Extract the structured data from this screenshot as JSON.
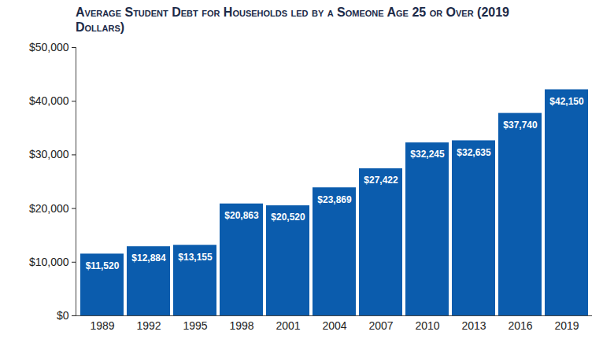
{
  "chart_data": {
    "type": "bar",
    "title": "Average Student Debt for Households led by a Someone Age 25 or Over (2019 Dollars)",
    "categories": [
      "1989",
      "1992",
      "1995",
      "1998",
      "2001",
      "2004",
      "2007",
      "2010",
      "2013",
      "2016",
      "2019"
    ],
    "values": [
      11520,
      12884,
      13155,
      20863,
      20520,
      23869,
      27422,
      32245,
      32635,
      37740,
      42150
    ],
    "value_labels": [
      "$11,520",
      "$12,884",
      "$13,155",
      "$20,863",
      "$20,520",
      "$23,869",
      "$27,422",
      "$32,245",
      "$32,635",
      "$37,740",
      "$42,150"
    ],
    "color": "#0b5cad",
    "ylim": [
      0,
      50000
    ],
    "yticks": [
      {
        "value": 0,
        "label": "$0"
      },
      {
        "value": 10000,
        "label": "$10,000"
      },
      {
        "value": 20000,
        "label": "$20,000"
      },
      {
        "value": 30000,
        "label": "$30,000"
      },
      {
        "value": 40000,
        "label": "$40,000"
      },
      {
        "value": 50000,
        "label": "$50,000"
      }
    ],
    "grid": false,
    "data_labels": true
  }
}
